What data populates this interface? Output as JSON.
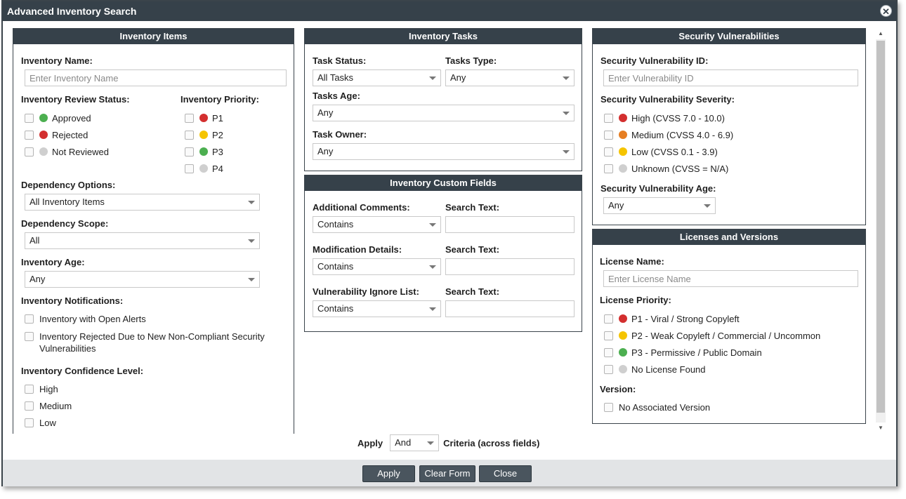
{
  "window": {
    "title": "Advanced Inventory Search"
  },
  "colors": {
    "red": "#d32f2f",
    "orange": "#e67e22",
    "yellow": "#f5c400",
    "green": "#4caf50",
    "grey": "#cfcfcf"
  },
  "inventory_items": {
    "title": "Inventory Items",
    "name_label": "Inventory Name",
    "name_placeholder": "Enter Inventory Name",
    "review_status_label": "Inventory Review Status",
    "review_status": [
      "Approved",
      "Rejected",
      "Not Reviewed"
    ],
    "priority_label": "Inventory Priority",
    "priorities": [
      "P1",
      "P2",
      "P3",
      "P4"
    ],
    "dependency_options_label": "Dependency Options",
    "dependency_options_value": "All Inventory Items",
    "dependency_scope_label": "Dependency Scope",
    "dependency_scope_value": "All",
    "age_label": "Inventory Age",
    "age_value": "Any",
    "notifications_label": "Inventory Notifications",
    "notifications": [
      "Inventory with Open Alerts",
      "Inventory Rejected Due to New Non-Compliant Security Vulnerabilities"
    ],
    "confidence_label": "Inventory Confidence Level",
    "confidence": [
      "High",
      "Medium",
      "Low"
    ]
  },
  "inventory_tasks": {
    "title": "Inventory Tasks",
    "task_status_label": "Task Status",
    "task_status_value": "All Tasks",
    "tasks_type_label": "Tasks Type",
    "tasks_type_value": "Any",
    "tasks_age_label": "Tasks Age",
    "tasks_age_value": "Any",
    "task_owner_label": "Task Owner",
    "task_owner_value": "Any"
  },
  "custom_fields": {
    "title": "Inventory Custom Fields",
    "search_text_label": "Search Text",
    "fields": [
      {
        "label": "Additional Comments",
        "operator": "Contains"
      },
      {
        "label": "Modification Details",
        "operator": "Contains"
      },
      {
        "label": "Vulnerability Ignore List",
        "operator": "Contains"
      }
    ]
  },
  "security": {
    "title": "Security Vulnerabilities",
    "id_label": "Security Vulnerability ID",
    "id_placeholder": "Enter Vulnerability ID",
    "severity_label": "Security Vulnerability Severity",
    "severities": [
      "High (CVSS 7.0 - 10.0)",
      "Medium (CVSS 4.0 - 6.9)",
      "Low (CVSS 0.1 - 3.9)",
      "Unknown (CVSS = N/A)"
    ],
    "age_label": "Security Vulnerability Age",
    "age_value": "Any"
  },
  "licenses": {
    "title": "Licenses and Versions",
    "name_label": "License Name",
    "name_placeholder": "Enter License Name",
    "priority_label": "License Priority",
    "priorities": [
      "P1 - Viral / Strong Copyleft",
      "P2 - Weak Copyleft / Commercial / Uncommon",
      "P3 - Permissive / Public Domain",
      "No License Found"
    ],
    "version_label": "Version",
    "version_option": "No Associated Version"
  },
  "apply_row": {
    "prefix": "Apply",
    "operator": "And",
    "suffix": "Criteria (across fields)"
  },
  "footer": {
    "apply": "Apply",
    "clear": "Clear Form",
    "close": "Close"
  }
}
